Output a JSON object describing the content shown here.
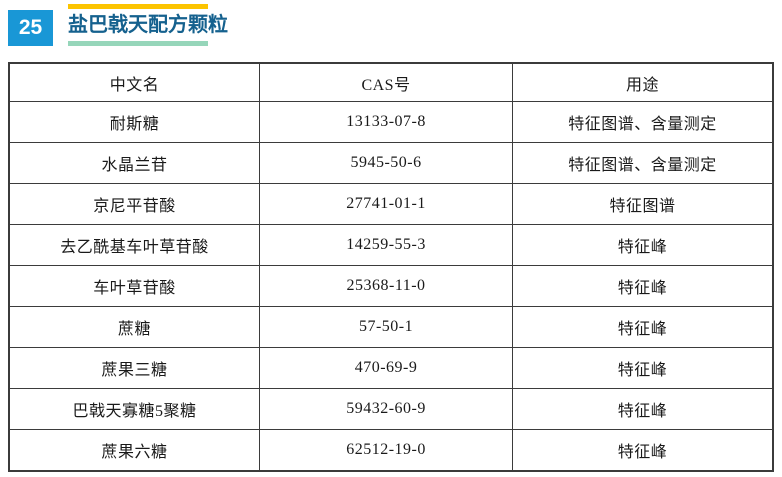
{
  "page": {
    "number": "25",
    "title": "盐巴戟天配方颗粒"
  },
  "colors": {
    "badge_blue": "#1997d6",
    "title_blue": "#15618e",
    "accent_yellow": "#fcc400",
    "accent_green": "#96d6ba",
    "table_border": "#3b3b3b"
  },
  "table": {
    "headers": [
      "中文名",
      "CAS号",
      "用途"
    ],
    "rows": [
      {
        "cn": "耐斯糖",
        "cas": "13133-07-8",
        "use": "特征图谱、含量测定"
      },
      {
        "cn": "水晶兰苷",
        "cas": "5945-50-6",
        "use": "特征图谱、含量测定"
      },
      {
        "cn": "京尼平苷酸",
        "cas": "27741-01-1",
        "use": "特征图谱"
      },
      {
        "cn": "去乙酰基车叶草苷酸",
        "cas": "14259-55-3",
        "use": "特征峰"
      },
      {
        "cn": "车叶草苷酸",
        "cas": "25368-11-0",
        "use": "特征峰"
      },
      {
        "cn": "蔗糖",
        "cas": "57-50-1",
        "use": "特征峰"
      },
      {
        "cn": "蔗果三糖",
        "cas": "470-69-9",
        "use": "特征峰"
      },
      {
        "cn": "巴戟天寡糖5聚糖",
        "cas": "59432-60-9",
        "use": "特征峰"
      },
      {
        "cn": "蔗果六糖",
        "cas": "62512-19-0",
        "use": "特征峰"
      }
    ]
  }
}
